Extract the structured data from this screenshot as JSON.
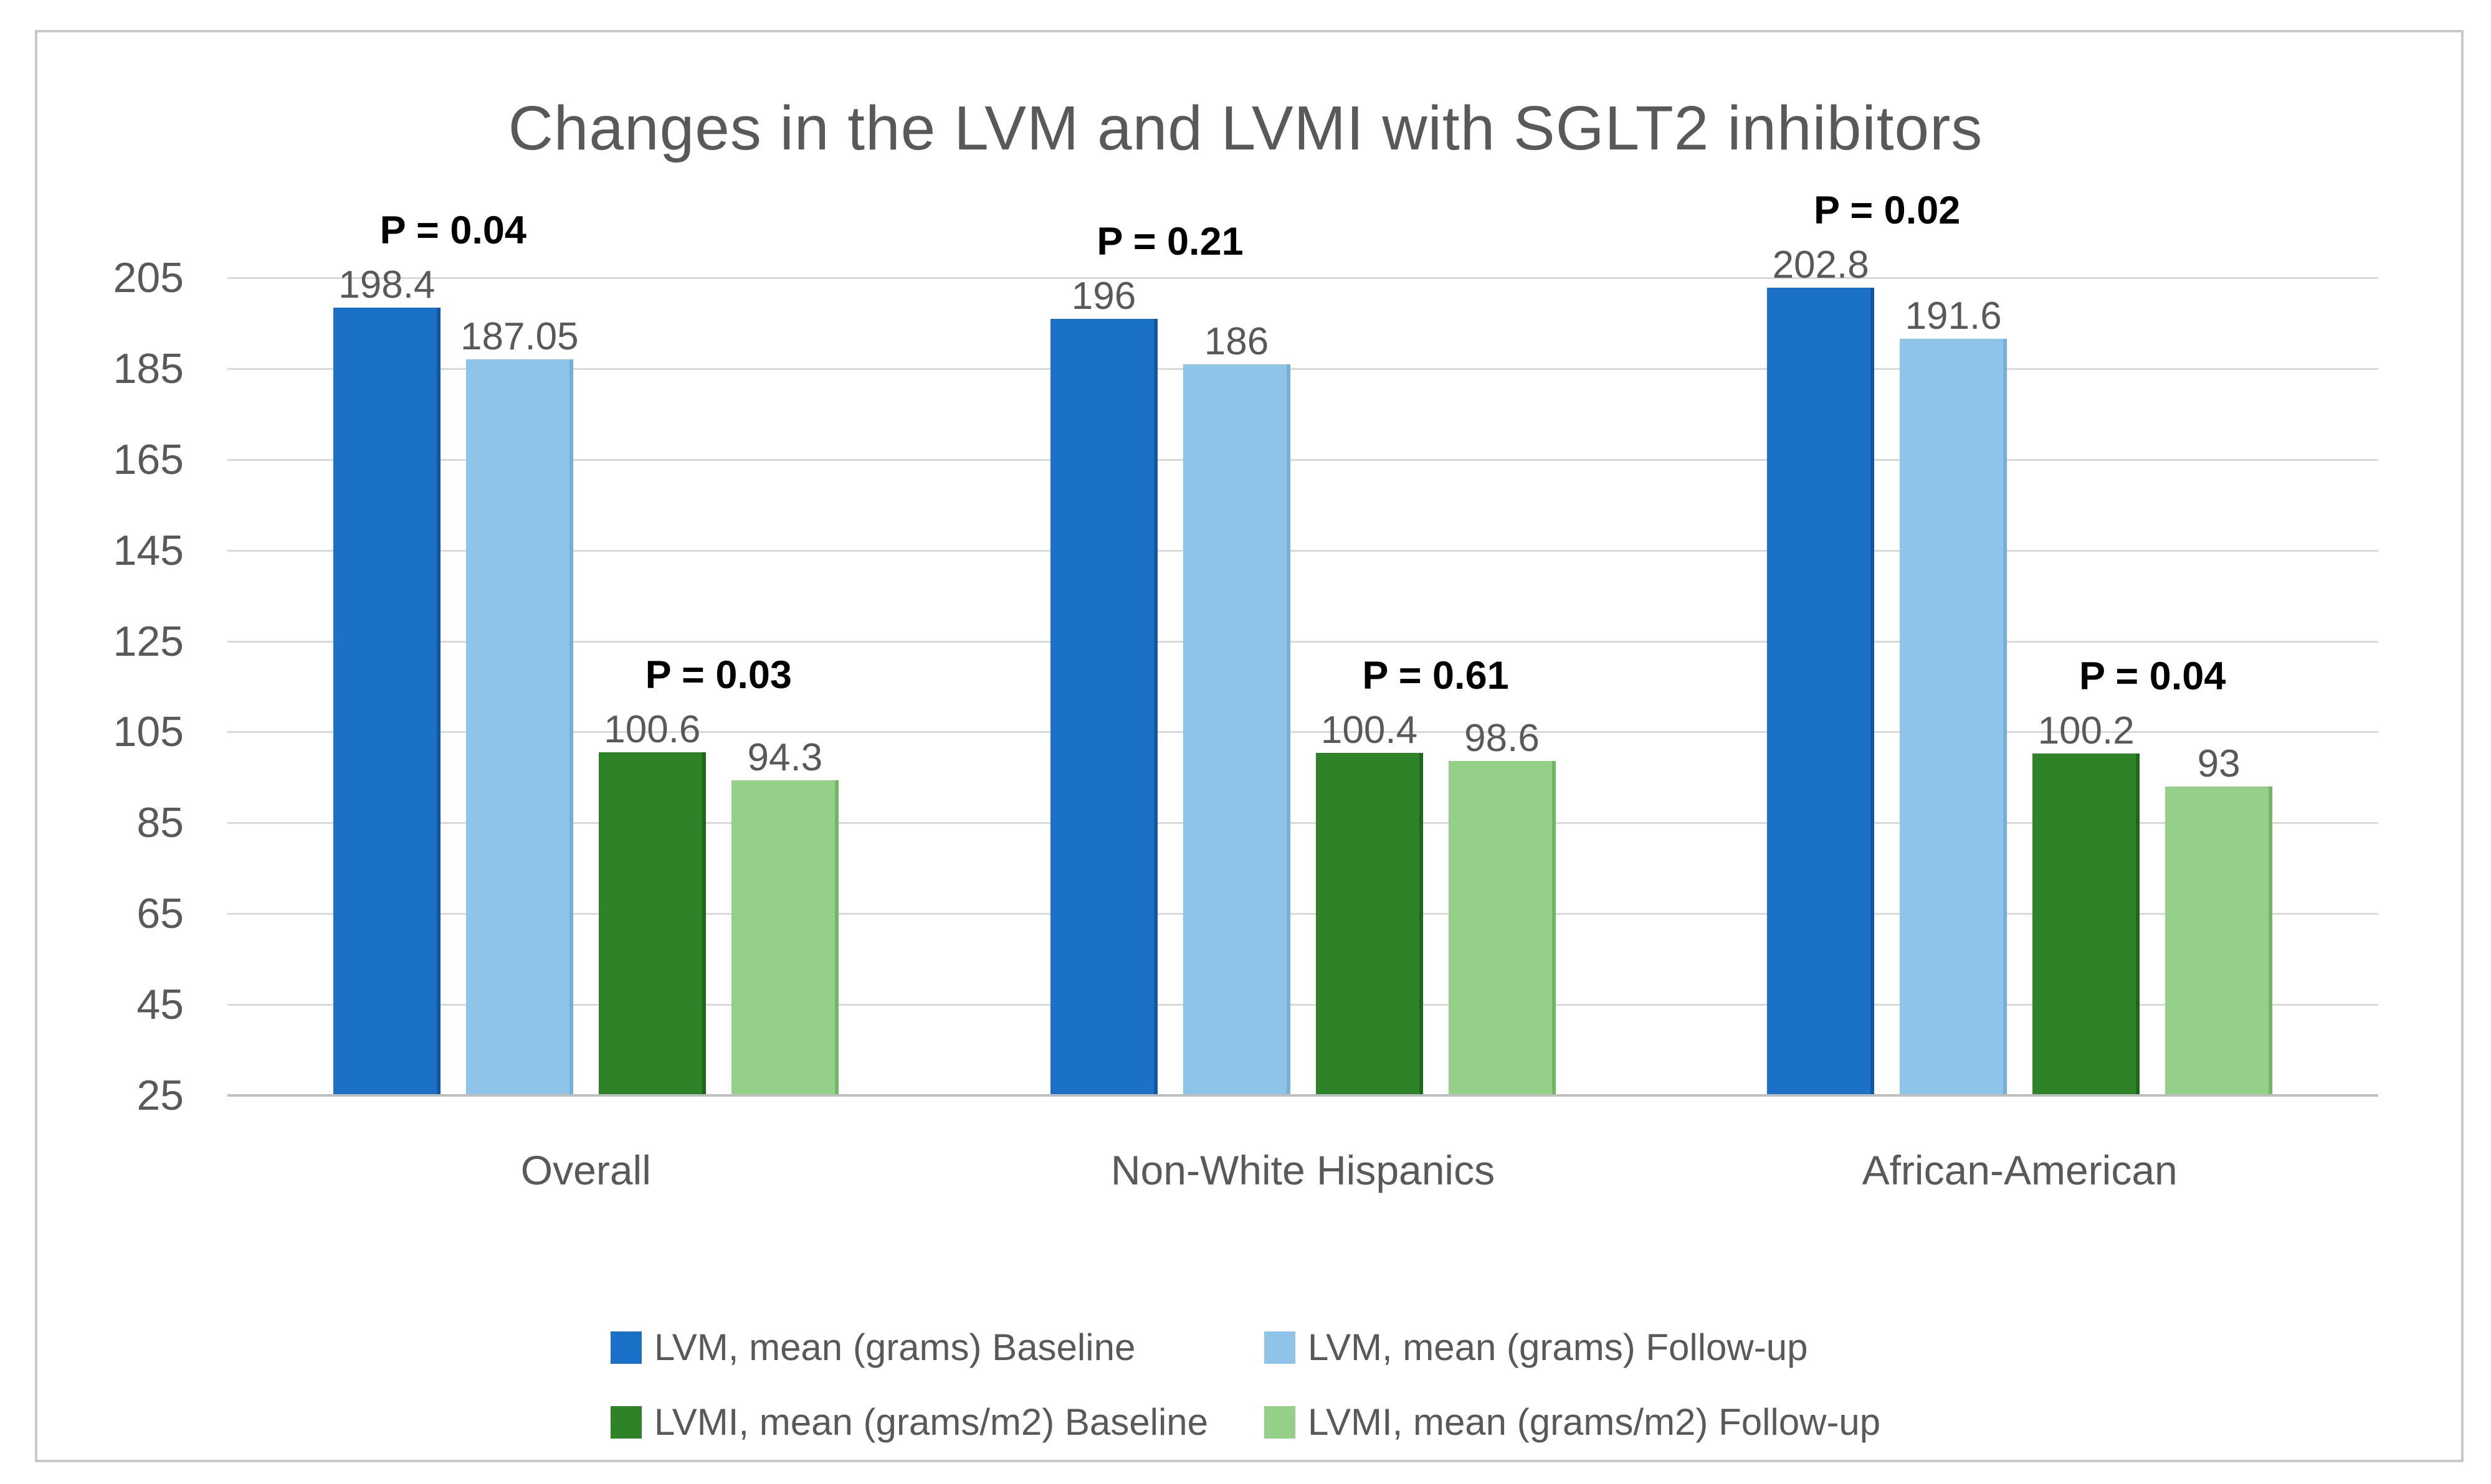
{
  "figure": {
    "background": "#ffffff",
    "border_color": "#c8c8c8"
  },
  "chart_data": {
    "type": "bar",
    "title": "Changes in the LVM and LVMI with SGLT2 inhibitors",
    "title_color": "#595959",
    "categories": [
      "Overall",
      "Non-White Hispanics",
      "African-American"
    ],
    "series": [
      {
        "name": "LVM, mean (grams) Baseline",
        "color": "#1b71c8",
        "edge_color": "#0e59a5",
        "values": [
          198.4,
          196,
          202.8
        ]
      },
      {
        "name": "LVM, mean (grams) Follow-up",
        "color": "#8ec4e8",
        "edge_color": "#74b0da",
        "values": [
          187.05,
          186,
          191.6
        ]
      },
      {
        "name": "LVMI, mean (grams/m2) Baseline",
        "color": "#2e8228",
        "edge_color": "#1c6a17",
        "values": [
          100.6,
          100.4,
          100.2
        ]
      },
      {
        "name": "LVMI, mean (grams/m2) Follow-up",
        "color": "#94d088",
        "edge_color": "#6fba61",
        "values": [
          94.3,
          98.6,
          93
        ]
      }
    ],
    "p_values": {
      "lvm_pairs": [
        "P = 0.04",
        "P = 0.21",
        "P = 0.02"
      ],
      "lvmi_pairs": [
        "P = 0.03",
        "P = 0.61",
        "P = 0.04"
      ]
    },
    "yticks": [
      25,
      45,
      65,
      85,
      105,
      125,
      145,
      165,
      185,
      205
    ],
    "ylim": [
      25,
      205
    ],
    "grid": true,
    "gridline_color": "#d9d9d9",
    "axis_line_color": "#bfbfbf",
    "value_label_color": "#595959",
    "p_label_color": "#000000",
    "legend_position": "bottom-center"
  }
}
